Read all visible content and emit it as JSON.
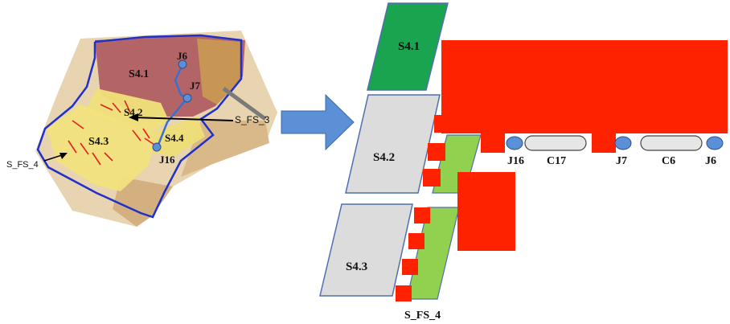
{
  "left_map": {
    "labels": {
      "s41": "S4.1",
      "s42": "S4.2",
      "s43": "S4.3",
      "s44": "S4.4",
      "j6": "J6",
      "j7": "J7",
      "j16": "J16",
      "s_fs_3": "S_FS_3",
      "s_fs_4": "S_FS_4"
    }
  },
  "right_schematic": {
    "labels": {
      "s41": "S4.1",
      "s42": "S4.2",
      "s43": "S4.3",
      "j16": "J16",
      "c17": "C17",
      "j7": "J7",
      "c6": "C6",
      "j6": "J6",
      "s_fs_4": "S_FS_4"
    }
  },
  "colors": {
    "subcatchment_green": "#1aa450",
    "subcatchment_gray": "#dcdcdc",
    "outline_blue": "#4f6fb0",
    "filter_strip_green": "#92d050",
    "building_red": "#ff2200",
    "junction_blue": "#5b8fd6",
    "arrow_blue": "#5b8fd6",
    "conduit_gray": "#e6e6e6"
  }
}
